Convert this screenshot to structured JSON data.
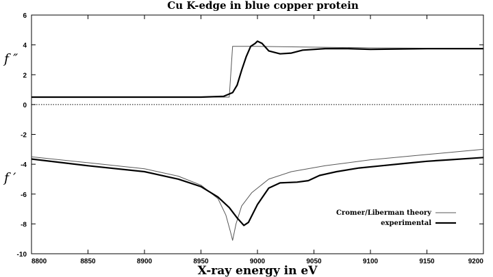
{
  "chart_data": {
    "type": "line",
    "title": "Cu K-edge in blue copper protein",
    "xlabel": "X-ray energy in eV",
    "ylabel_upper": "f ″",
    "ylabel_lower": "f ′",
    "xlim": [
      8800,
      9200
    ],
    "ylim": [
      -10,
      6
    ],
    "x_ticks": [
      "8800",
      "8850",
      "8900",
      "8950",
      "9000",
      "9050",
      "9100",
      "9150",
      "9200"
    ],
    "y_ticks": [
      "6",
      "4",
      "2",
      "0",
      "-2",
      "-4",
      "-6",
      "-8",
      "-10"
    ],
    "zero_line": {
      "y": 0,
      "style": "dotted"
    },
    "grid": false,
    "legend_position": "bottom-right",
    "series": [
      {
        "name": "Cromer/Liberman theory",
        "component": "f''",
        "color": "#555555",
        "points": [
          [
            8800,
            0.5
          ],
          [
            8900,
            0.5
          ],
          [
            8975,
            0.5
          ],
          [
            8978,
            3.9
          ],
          [
            9000,
            3.9
          ],
          [
            9100,
            3.8
          ],
          [
            9200,
            3.75
          ]
        ]
      },
      {
        "name": "experimental",
        "component": "f''",
        "color": "#000000",
        "points": [
          [
            8800,
            0.5
          ],
          [
            8900,
            0.5
          ],
          [
            8950,
            0.5
          ],
          [
            8970,
            0.55
          ],
          [
            8978,
            0.8
          ],
          [
            8982,
            1.3
          ],
          [
            8986,
            2.3
          ],
          [
            8990,
            3.2
          ],
          [
            8994,
            3.9
          ],
          [
            8998,
            4.1
          ],
          [
            9000,
            4.25
          ],
          [
            9004,
            4.1
          ],
          [
            9010,
            3.6
          ],
          [
            9020,
            3.4
          ],
          [
            9030,
            3.45
          ],
          [
            9040,
            3.65
          ],
          [
            9060,
            3.75
          ],
          [
            9080,
            3.75
          ],
          [
            9100,
            3.7
          ],
          [
            9150,
            3.75
          ],
          [
            9200,
            3.75
          ]
        ]
      },
      {
        "name": "Cromer/Liberman theory",
        "component": "f'",
        "color": "#555555",
        "points": [
          [
            8800,
            -3.5
          ],
          [
            8850,
            -3.9
          ],
          [
            8900,
            -4.3
          ],
          [
            8930,
            -4.8
          ],
          [
            8950,
            -5.4
          ],
          [
            8965,
            -6.3
          ],
          [
            8972,
            -7.4
          ],
          [
            8976,
            -8.5
          ],
          [
            8978,
            -9.1
          ],
          [
            8981,
            -8.0
          ],
          [
            8986,
            -6.8
          ],
          [
            8995,
            -5.9
          ],
          [
            9010,
            -5.0
          ],
          [
            9030,
            -4.5
          ],
          [
            9060,
            -4.1
          ],
          [
            9100,
            -3.7
          ],
          [
            9150,
            -3.35
          ],
          [
            9200,
            -3.0
          ]
        ]
      },
      {
        "name": "experimental",
        "component": "f'",
        "color": "#000000",
        "points": [
          [
            8800,
            -3.65
          ],
          [
            8850,
            -4.1
          ],
          [
            8900,
            -4.5
          ],
          [
            8930,
            -5.0
          ],
          [
            8950,
            -5.5
          ],
          [
            8965,
            -6.2
          ],
          [
            8975,
            -6.9
          ],
          [
            8982,
            -7.6
          ],
          [
            8988,
            -8.1
          ],
          [
            8992,
            -7.9
          ],
          [
            9000,
            -6.7
          ],
          [
            9010,
            -5.6
          ],
          [
            9020,
            -5.25
          ],
          [
            9035,
            -5.2
          ],
          [
            9045,
            -5.1
          ],
          [
            9055,
            -4.75
          ],
          [
            9070,
            -4.5
          ],
          [
            9090,
            -4.25
          ],
          [
            9110,
            -4.1
          ],
          [
            9130,
            -3.95
          ],
          [
            9150,
            -3.8
          ],
          [
            9170,
            -3.7
          ],
          [
            9200,
            -3.55
          ]
        ]
      }
    ],
    "legend": [
      {
        "label": "Cromer/Liberman theory",
        "color": "#555555"
      },
      {
        "label": "experimental",
        "color": "#000000"
      }
    ]
  }
}
